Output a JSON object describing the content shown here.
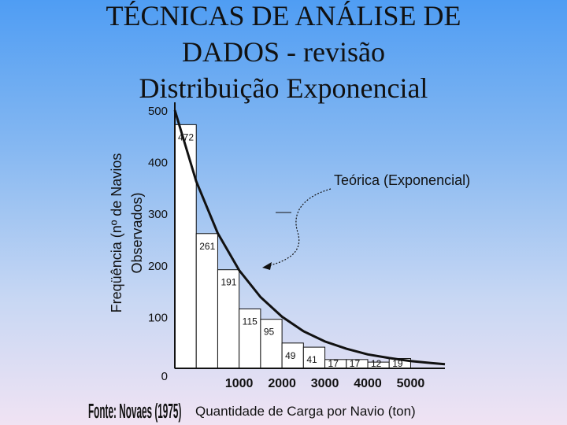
{
  "slide": {
    "title_line1": "TÉCNICAS DE ANÁLISE DE",
    "title_line2": "DADOS - revisão",
    "subtitle": "Distribuição Exponencial"
  },
  "chart_data": {
    "type": "bar",
    "title": "",
    "ylabel": "Freqüência (nº de Navios Observados)",
    "ylabel_lines": [
      "Freqüência (nº de Navios",
      "Observados)"
    ],
    "xlabel": "Quantidade de Carga por Navio (ton)",
    "source": "Fonte: Novaes (1975)",
    "ylim": [
      0,
      500
    ],
    "y_ticks": [
      0,
      100,
      200,
      300,
      400,
      500
    ],
    "xlim": [
      -500,
      5800
    ],
    "x_ticks": [
      1000,
      2000,
      3000,
      4000,
      5000
    ],
    "bins": [
      {
        "start": -500,
        "end": 0,
        "value": 472,
        "label": "472"
      },
      {
        "start": 0,
        "end": 500,
        "value": 261,
        "label": "261"
      },
      {
        "start": 500,
        "end": 1000,
        "value": 191,
        "label": "191"
      },
      {
        "start": 1000,
        "end": 1500,
        "value": 115,
        "label": "115"
      },
      {
        "start": 1500,
        "end": 2000,
        "value": 95,
        "label": "95"
      },
      {
        "start": 2000,
        "end": 2500,
        "value": 49,
        "label": "49"
      },
      {
        "start": 2500,
        "end": 3000,
        "value": 41,
        "label": "41"
      },
      {
        "start": 3000,
        "end": 3500,
        "value": 17,
        "label": "17"
      },
      {
        "start": 3500,
        "end": 4000,
        "value": 17,
        "label": "17"
      },
      {
        "start": 4000,
        "end": 4500,
        "value": 12,
        "label": "12"
      },
      {
        "start": 4500,
        "end": 5000,
        "value": 19,
        "label": "19"
      }
    ],
    "curve": {
      "name": "Teórica (Exponencial)",
      "points": [
        [
          -500,
          500
        ],
        [
          0,
          362
        ],
        [
          500,
          262
        ],
        [
          1000,
          190
        ],
        [
          1500,
          138
        ],
        [
          2000,
          100
        ],
        [
          2500,
          72
        ],
        [
          3000,
          52
        ],
        [
          3500,
          38
        ],
        [
          4000,
          27
        ],
        [
          4500,
          20
        ],
        [
          5000,
          14
        ],
        [
          5500,
          10
        ],
        [
          5800,
          8
        ]
      ]
    },
    "grid": false
  }
}
